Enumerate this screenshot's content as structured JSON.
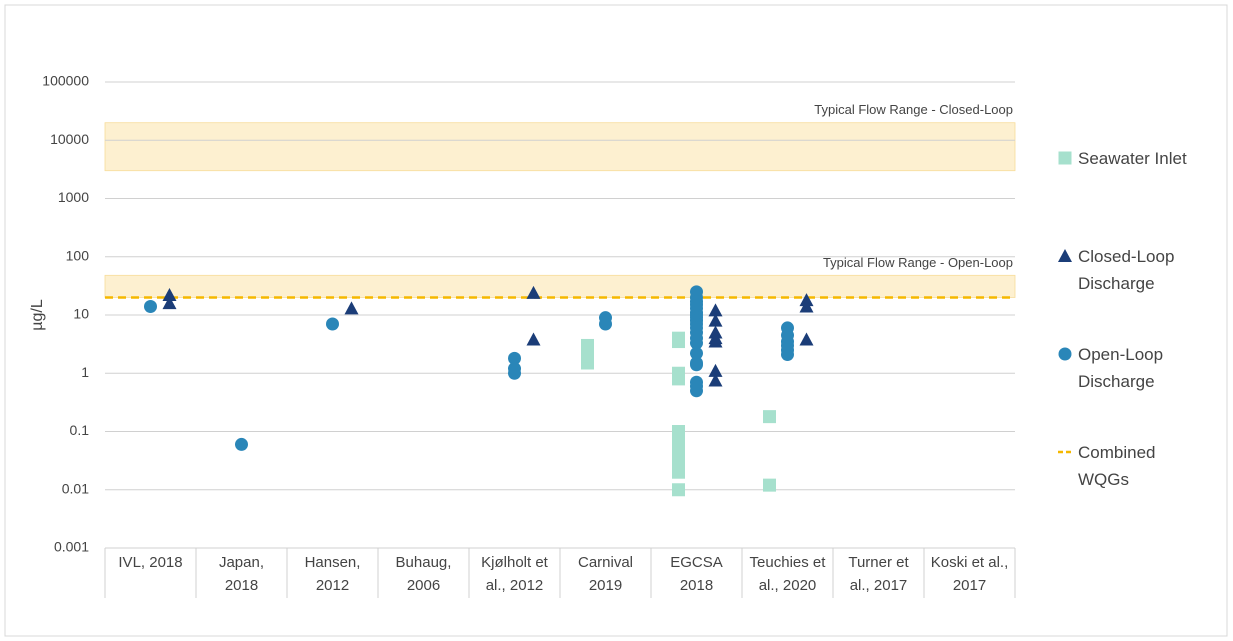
{
  "chart_data": {
    "type": "scatter",
    "y_label": "µg/L",
    "log_scale": true,
    "ylim": [
      0.001,
      100000
    ],
    "yticks": [
      100000,
      10000,
      1000,
      100,
      10,
      1,
      0.1,
      0.01,
      0.001
    ],
    "grid": true,
    "legend": "right",
    "categories": [
      "IVL, 2018",
      "Japan, 2018",
      "Hansen, 2012",
      "Buhaug, 2006",
      "Kjølholt et al., 2012",
      "Carnival 2019",
      "EGCSA 2018",
      "Teuchies et al., 2020",
      "Turner et al., 2017",
      "Koski et al., 2017"
    ],
    "bands": [
      {
        "label": "Typical Flow Range - Closed-Loop",
        "range": [
          3000,
          20000
        ],
        "color": "#fdf0d0"
      },
      {
        "label": "Typical Flow Range - Open-Loop",
        "range": [
          20,
          48
        ],
        "color": "#fdf0d0"
      }
    ],
    "series": [
      {
        "name": "Seawater Inlet",
        "marker": "square",
        "color": "#a6e0cd",
        "x": [
          "Carnival 2019",
          "Carnival 2019",
          "Carnival 2019",
          "Carnival 2019",
          "EGCSA 2018",
          "EGCSA 2018",
          "EGCSA 2018",
          "EGCSA 2018",
          "EGCSA 2018",
          "EGCSA 2018",
          "EGCSA 2018",
          "EGCSA 2018",
          "EGCSA 2018",
          "EGCSA 2018",
          "Teuchies et al., 2020",
          "Teuchies et al., 2020"
        ],
        "values": [
          1.5,
          2,
          2.5,
          3,
          4,
          3.5,
          1,
          0.8,
          0.1,
          0.07,
          0.05,
          0.03,
          0.02,
          0.01,
          0.18,
          0.012
        ]
      },
      {
        "name": "Closed-Loop Discharge",
        "marker": "triangle",
        "color": "#1b3d78",
        "x": [
          "IVL, 2018",
          "IVL, 2018",
          "Hansen, 2012",
          "Kjølholt et al., 2012",
          "Kjølholt et al., 2012",
          "EGCSA 2018",
          "EGCSA 2018",
          "EGCSA 2018",
          "EGCSA 2018",
          "EGCSA 2018",
          "EGCSA 2018",
          "EGCSA 2018",
          "Teuchies et al., 2020",
          "Teuchies et al., 2020",
          "Teuchies et al., 2020"
        ],
        "values": [
          22,
          16,
          13,
          24,
          3.8,
          12,
          8,
          5,
          4,
          3.5,
          1.1,
          0.75,
          18,
          14,
          3.8
        ]
      },
      {
        "name": "Open-Loop Discharge",
        "marker": "circle",
        "color": "#2a86b8",
        "x": [
          "IVL, 2018",
          "Japan, 2018",
          "Hansen, 2012",
          "Kjølholt et al., 2012",
          "Kjølholt et al., 2012",
          "Kjølholt et al., 2012",
          "Carnival 2019",
          "Carnival 2019",
          "EGCSA 2018",
          "EGCSA 2018",
          "EGCSA 2018",
          "EGCSA 2018",
          "EGCSA 2018",
          "EGCSA 2018",
          "EGCSA 2018",
          "EGCSA 2018",
          "EGCSA 2018",
          "EGCSA 2018",
          "EGCSA 2018",
          "EGCSA 2018",
          "EGCSA 2018",
          "EGCSA 2018",
          "EGCSA 2018",
          "EGCSA 2018",
          "EGCSA 2018",
          "EGCSA 2018",
          "EGCSA 2018",
          "EGCSA 2018",
          "Teuchies et al., 2020",
          "Teuchies et al., 2020",
          "Teuchies et al., 2020",
          "Teuchies et al., 2020",
          "Teuchies et al., 2020",
          "Teuchies et al., 2020"
        ],
        "values": [
          14,
          0.06,
          7,
          1.8,
          1.2,
          1.0,
          9,
          7,
          25,
          20,
          17,
          15,
          13,
          11,
          10,
          9,
          8,
          7,
          6,
          5,
          4,
          3.3,
          2.2,
          1.5,
          1.4,
          0.7,
          0.6,
          0.5,
          6,
          4.5,
          3.5,
          3,
          2.5,
          2.1
        ]
      }
    ],
    "reference_line": {
      "name": "Combined WQGs",
      "value": 20,
      "color": "#f5b800"
    }
  }
}
